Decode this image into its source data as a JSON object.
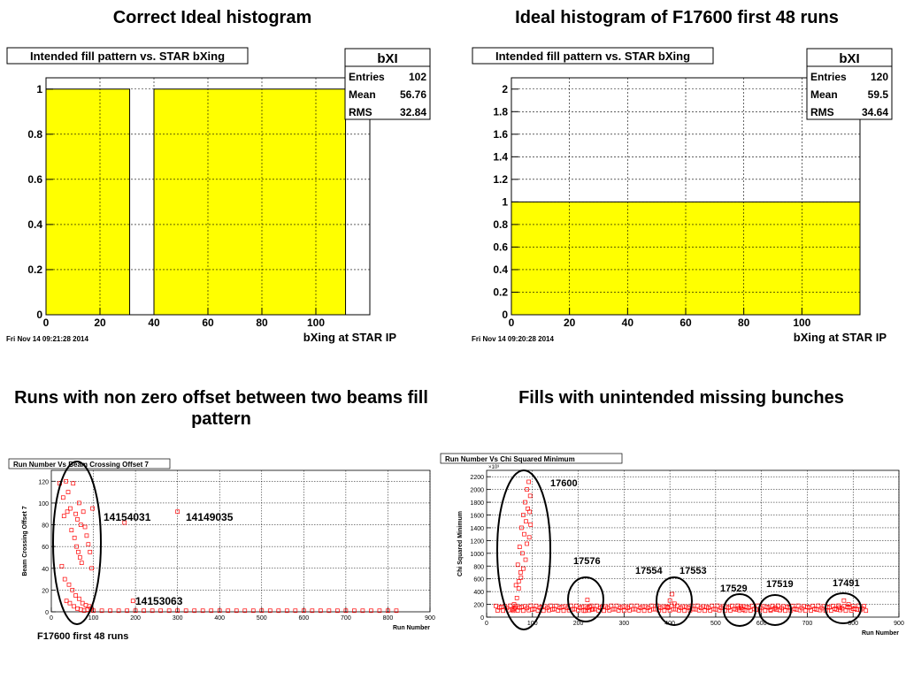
{
  "headings": {
    "top_left": "Correct Ideal histogram",
    "top_right": "Ideal histogram of F17600 first 48 runs",
    "bottom_left": "Runs with non zero offset between two beams fill pattern",
    "bottom_right": "Fills with unintended missing bunches"
  },
  "chart_data": [
    {
      "type": "bar",
      "title": "Intended fill pattern vs. STAR bXing",
      "xlabel": "bXing at STAR IP",
      "ylabel": "",
      "xlim": [
        0,
        120
      ],
      "ylim": [
        0,
        1.05
      ],
      "xticks": [
        0,
        20,
        40,
        60,
        80,
        100
      ],
      "yticks": [
        0,
        0.2,
        0.4,
        0.6,
        0.8,
        1
      ],
      "grid": true,
      "fill_color": "#ffff00",
      "bars": [
        {
          "x0": 0,
          "x1": 31,
          "value": 1
        },
        {
          "x0": 40,
          "x1": 111,
          "value": 1
        }
      ],
      "stats": {
        "name": "bXI",
        "entries_label": "Entries",
        "entries": "102",
        "mean_label": "Mean",
        "mean": "56.76",
        "rms_label": "RMS",
        "rms": "32.84"
      },
      "timestamp": "Fri Nov 14 09:21:28 2014"
    },
    {
      "type": "bar",
      "title": "Intended fill pattern vs. STAR bXing",
      "xlabel": "bXing at STAR IP",
      "ylabel": "",
      "xlim": [
        0,
        120
      ],
      "ylim": [
        0,
        2.1
      ],
      "xticks": [
        0,
        20,
        40,
        60,
        80,
        100
      ],
      "yticks": [
        0,
        0.2,
        0.4,
        0.6,
        0.8,
        1,
        1.2,
        1.4,
        1.6,
        1.8,
        2
      ],
      "grid": true,
      "fill_color": "#ffff00",
      "bars": [
        {
          "x0": 0,
          "x1": 120,
          "value": 1
        }
      ],
      "stats": {
        "name": "bXI",
        "entries_label": "Entries",
        "entries": "120",
        "mean_label": "Mean",
        "mean": "59.5",
        "rms_label": "RMS",
        "rms": "34.64"
      },
      "timestamp": "Fri Nov 14 09:20:28 2014"
    },
    {
      "type": "scatter",
      "title": "Run Number Vs Beam Crossing Offset 7",
      "xlabel": "Run Number",
      "ylabel": "Beam Crossing Offset 7",
      "xlim": [
        0,
        900
      ],
      "ylim": [
        0,
        130
      ],
      "xticks": [
        0,
        100,
        200,
        300,
        400,
        500,
        600,
        700,
        800,
        900
      ],
      "yticks": [
        0,
        20,
        40,
        60,
        80,
        100,
        120
      ],
      "grid": true,
      "marker_color": "#ff0000",
      "points": [
        [
          20,
          118
        ],
        [
          28,
          105
        ],
        [
          35,
          120
        ],
        [
          40,
          110
        ],
        [
          45,
          95
        ],
        [
          52,
          118
        ],
        [
          58,
          90
        ],
        [
          62,
          85
        ],
        [
          66,
          100
        ],
        [
          70,
          80
        ],
        [
          30,
          88
        ],
        [
          38,
          92
        ],
        [
          48,
          75
        ],
        [
          55,
          68
        ],
        [
          60,
          60
        ],
        [
          64,
          55
        ],
        [
          68,
          50
        ],
        [
          72,
          45
        ],
        [
          76,
          92
        ],
        [
          80,
          78
        ],
        [
          84,
          70
        ],
        [
          88,
          62
        ],
        [
          92,
          55
        ],
        [
          96,
          40
        ],
        [
          25,
          42
        ],
        [
          32,
          30
        ],
        [
          42,
          25
        ],
        [
          50,
          20
        ],
        [
          58,
          15
        ],
        [
          66,
          12
        ],
        [
          74,
          8
        ],
        [
          82,
          6
        ],
        [
          90,
          5
        ],
        [
          36,
          10
        ],
        [
          44,
          8
        ],
        [
          54,
          5
        ],
        [
          62,
          3
        ],
        [
          70,
          2
        ],
        [
          78,
          1
        ],
        [
          86,
          2
        ],
        [
          94,
          3
        ],
        [
          98,
          95
        ],
        [
          174,
          82
        ],
        [
          194,
          10
        ],
        [
          300,
          92
        ],
        [
          100,
          1
        ],
        [
          120,
          1
        ],
        [
          140,
          1
        ],
        [
          160,
          1
        ],
        [
          180,
          1
        ],
        [
          200,
          1
        ],
        [
          220,
          1
        ],
        [
          240,
          1
        ],
        [
          260,
          1
        ],
        [
          280,
          1
        ],
        [
          300,
          1
        ],
        [
          320,
          1
        ],
        [
          340,
          1
        ],
        [
          360,
          1
        ],
        [
          380,
          1
        ],
        [
          400,
          1
        ],
        [
          420,
          1
        ],
        [
          440,
          1
        ],
        [
          460,
          1
        ],
        [
          480,
          1
        ],
        [
          500,
          1
        ],
        [
          520,
          1
        ],
        [
          540,
          1
        ],
        [
          560,
          1
        ],
        [
          580,
          1
        ],
        [
          600,
          1
        ],
        [
          620,
          1
        ],
        [
          640,
          1
        ],
        [
          660,
          1
        ],
        [
          680,
          1
        ],
        [
          700,
          1
        ],
        [
          720,
          1
        ],
        [
          740,
          1
        ],
        [
          760,
          1
        ],
        [
          780,
          1
        ],
        [
          800,
          1
        ],
        [
          820,
          1
        ]
      ],
      "annotations": [
        "14154031",
        "14149035",
        "14153063",
        "F17600 first 48  runs"
      ]
    },
    {
      "type": "scatter",
      "title": "Run Number Vs Chi Squared Minimum",
      "xlabel": "Run Number",
      "ylabel": "Chi Squared Minimum",
      "exponent_label": "×10³",
      "xlim": [
        0,
        900
      ],
      "ylim": [
        0,
        2300
      ],
      "xticks": [
        0,
        100,
        200,
        300,
        400,
        500,
        600,
        700,
        800,
        900
      ],
      "yticks": [
        0,
        200,
        400,
        600,
        800,
        1000,
        1200,
        1400,
        1600,
        1800,
        2000,
        2200
      ],
      "grid": true,
      "marker_color": "#ff0000",
      "points": [
        [
          60,
          200
        ],
        [
          64,
          500
        ],
        [
          68,
          820
        ],
        [
          72,
          1100
        ],
        [
          76,
          1400
        ],
        [
          80,
          1600
        ],
        [
          84,
          1800
        ],
        [
          88,
          2000
        ],
        [
          92,
          2120
        ],
        [
          95,
          1900
        ],
        [
          90,
          1700
        ],
        [
          86,
          1500
        ],
        [
          82,
          1300
        ],
        [
          78,
          1000
        ],
        [
          74,
          700
        ],
        [
          70,
          450
        ],
        [
          66,
          300
        ],
        [
          62,
          150
        ],
        [
          58,
          100
        ],
        [
          94,
          1650
        ],
        [
          96,
          1450
        ],
        [
          93,
          1250
        ],
        [
          88,
          1150
        ],
        [
          85,
          900
        ],
        [
          80,
          760
        ],
        [
          75,
          620
        ],
        [
          70,
          560
        ],
        [
          220,
          270
        ],
        [
          225,
          160
        ],
        [
          230,
          120
        ],
        [
          215,
          100
        ],
        [
          405,
          360
        ],
        [
          400,
          260
        ],
        [
          410,
          210
        ],
        [
          395,
          160
        ],
        [
          550,
          140
        ],
        [
          555,
          170
        ],
        [
          560,
          120
        ],
        [
          620,
          120
        ],
        [
          630,
          150
        ],
        [
          640,
          110
        ],
        [
          780,
          260
        ],
        [
          790,
          200
        ],
        [
          770,
          150
        ],
        [
          800,
          130
        ]
      ],
      "band_y": 140,
      "band_range": [
        20,
        830
      ],
      "annotations": [
        "17600",
        "17576",
        "17554",
        "17553",
        "17529",
        "17519",
        "17491"
      ]
    }
  ]
}
